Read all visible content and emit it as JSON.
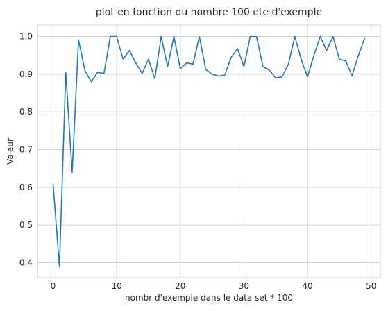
{
  "chart_data": {
    "type": "line",
    "title": "plot en fonction du nombre 100 ete d'exemple",
    "xlabel": "nombr d'exemple dans le data set * 100",
    "ylabel": "Valeur",
    "xlim": [
      -2.45,
      51.45
    ],
    "ylim": [
      0.3605,
      1.0305
    ],
    "xticks": [
      0,
      10,
      20,
      30,
      40,
      50
    ],
    "yticks": [
      0.4,
      0.5,
      0.6,
      0.7,
      0.8,
      0.9,
      1.0
    ],
    "ytick_labels": [
      "0.4",
      "0.5",
      "0.6",
      "0.7",
      "0.8",
      "0.9",
      "1.0"
    ],
    "grid": true,
    "series": [
      {
        "color": "#1f77b4",
        "x": [
          0,
          1,
          2,
          3,
          4,
          5,
          6,
          7,
          8,
          9,
          10,
          11,
          12,
          13,
          14,
          15,
          16,
          17,
          18,
          19,
          20,
          21,
          22,
          23,
          24,
          25,
          26,
          27,
          28,
          29,
          30,
          31,
          32,
          33,
          34,
          35,
          36,
          37,
          38,
          39,
          40,
          41,
          42,
          43,
          44,
          45,
          46,
          47,
          48,
          49
        ],
        "y": [
          0.61,
          0.39,
          0.904,
          0.64,
          0.991,
          0.91,
          0.88,
          0.905,
          0.902,
          1.0,
          1.0,
          0.94,
          0.963,
          0.93,
          0.902,
          0.94,
          0.888,
          1.0,
          0.92,
          1.0,
          0.915,
          0.93,
          0.927,
          1.0,
          0.913,
          0.9,
          0.895,
          0.898,
          0.945,
          0.968,
          0.92,
          1.0,
          0.999,
          0.92,
          0.911,
          0.89,
          0.893,
          0.927,
          1.0,
          0.94,
          0.893,
          0.95,
          1.0,
          0.963,
          1.0,
          0.94,
          0.935,
          0.896,
          0.95,
          0.996
        ]
      }
    ]
  }
}
